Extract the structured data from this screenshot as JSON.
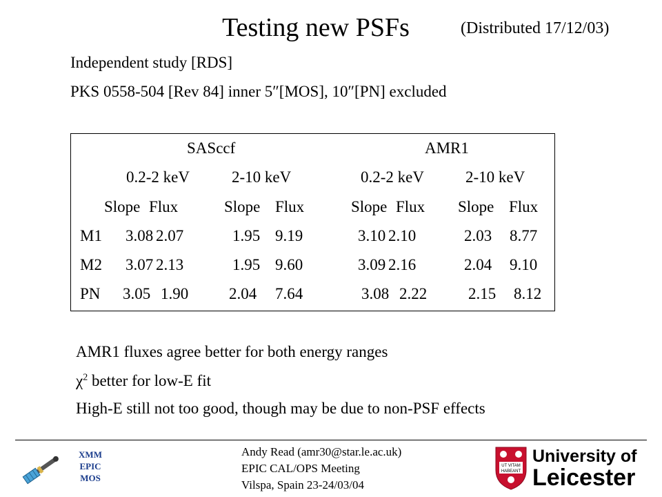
{
  "header": {
    "title": "Testing new PSFs",
    "distributed": "(Distributed 17/12/03)"
  },
  "intro": {
    "line1": "Independent study [RDS]",
    "line2": "PKS 0558-504 [Rev 84]   inner 5″[MOS], 10″[PN] excluded"
  },
  "table": {
    "groups": [
      "SASccf",
      "AMR1"
    ],
    "bands": [
      "0.2-2 keV",
      "2-10 keV",
      "0.2-2 keV",
      "2-10 keV"
    ],
    "subheaders": [
      "Slope",
      "Flux",
      "Slope",
      "Flux",
      "Slope",
      "Flux",
      "Slope",
      "Flux"
    ],
    "rows": [
      {
        "label": "M1",
        "values": [
          "3.08",
          "2.07",
          "1.95",
          "9.19",
          "3.10",
          "2.10",
          "2.03",
          "8.77"
        ]
      },
      {
        "label": "M2",
        "values": [
          "3.07",
          "2.13",
          "1.95",
          "9.60",
          "3.09",
          "2.16",
          "2.04",
          "9.10"
        ]
      },
      {
        "label": "PN",
        "values": [
          "3.05",
          "1.90",
          "2.04",
          "7.64",
          "3.08",
          "2.22",
          "2.15",
          "8.12"
        ]
      }
    ]
  },
  "conclusions": {
    "item1": "AMR1 fluxes agree better for both energy ranges",
    "item2_symbol": "χ",
    "item2_sup": "2",
    "item2_rest": " better for low-E fit",
    "item3": "High-E still not too good, though may be due to non-PSF effects"
  },
  "footer": {
    "logo_label": [
      "XMM",
      "EPIC",
      "MOS"
    ],
    "author": "Andy Read (amr30@star.le.ac.uk)",
    "meeting": "EPIC CAL/OPS Meeting",
    "location": "Vilspa, Spain 23-24/03/04",
    "university_line1": "University of",
    "university_line2": "Leicester",
    "crest_motto": [
      "UT VITAM",
      "HABEANT"
    ]
  },
  "colors": {
    "text": "#000000",
    "epic_label": "#1a3c8c",
    "crest_red": "#c8102e",
    "satellite_blue": "#4aa3d8"
  }
}
